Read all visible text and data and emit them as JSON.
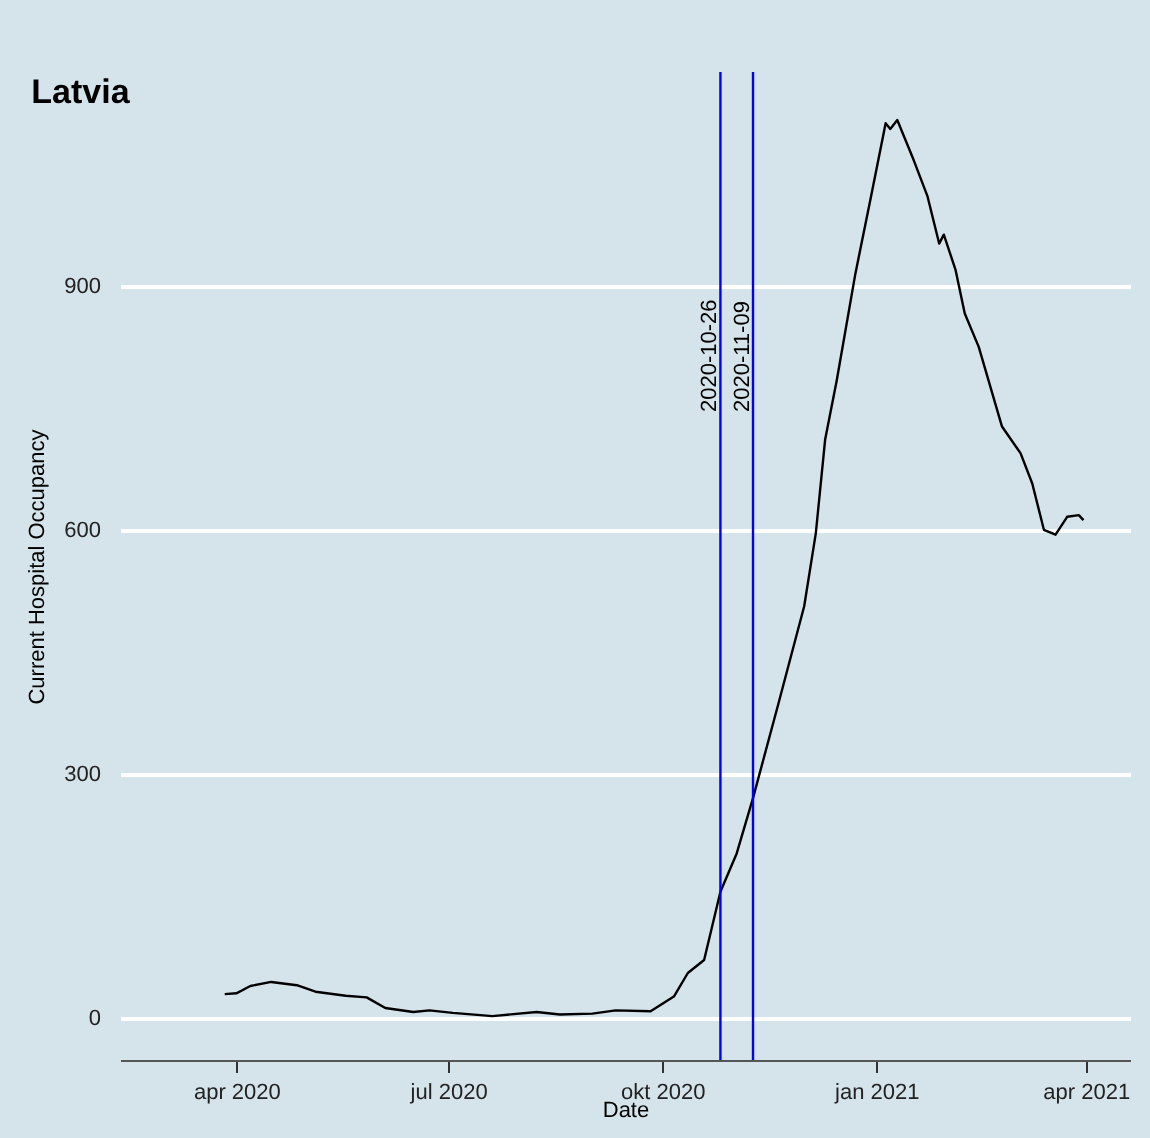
{
  "chart_data": {
    "type": "line",
    "title": "Latvia",
    "xlabel": "Date",
    "ylabel": "Current Hospital Occupancy",
    "x": [
      "2020-03-27",
      "2020-04-01",
      "2020-04-07",
      "2020-04-16",
      "2020-04-27",
      "2020-05-05",
      "2020-05-18",
      "2020-05-27",
      "2020-06-04",
      "2020-06-16",
      "2020-06-23",
      "2020-07-03",
      "2020-07-20",
      "2020-08-08",
      "2020-08-18",
      "2020-09-01",
      "2020-09-11",
      "2020-09-26",
      "2020-10-06",
      "2020-10-12",
      "2020-10-19",
      "2020-10-26",
      "2020-11-02",
      "2020-11-09",
      "2020-11-20",
      "2020-12-01",
      "2020-12-06",
      "2020-12-10",
      "2020-12-15",
      "2020-12-23",
      "2020-12-30",
      "2021-01-05",
      "2021-01-07",
      "2021-01-10",
      "2021-01-17",
      "2021-01-23",
      "2021-01-28",
      "2021-01-30",
      "2021-02-04",
      "2021-02-08",
      "2021-02-14",
      "2021-02-24",
      "2021-03-04",
      "2021-03-09",
      "2021-03-14",
      "2021-03-19",
      "2021-03-24",
      "2021-03-29",
      "2021-03-31"
    ],
    "series": [
      {
        "color": "#000000",
        "values": [
          29,
          30,
          39,
          44,
          40,
          32,
          27,
          25,
          12,
          7,
          9,
          6,
          2,
          7,
          4,
          5,
          9,
          8,
          26,
          55,
          71,
          155,
          202,
          270,
          387,
          506,
          596,
          711,
          784,
          915,
          1014,
          1100,
          1093,
          1104,
          1055,
          1010,
          952,
          963,
          920,
          866,
          825,
          727,
          694,
          657,
          600,
          594,
          616,
          618,
          612
        ]
      }
    ],
    "xlim": [
      "2020-02-11",
      "2021-04-20"
    ],
    "xticks": [
      {
        "value": "2020-04-01",
        "label": "apr 2020"
      },
      {
        "value": "2020-07-01",
        "label": "jul 2020"
      },
      {
        "value": "2020-10-01",
        "label": "okt 2020"
      },
      {
        "value": "2021-01-01",
        "label": "jan 2021"
      },
      {
        "value": "2021-04-01",
        "label": "apr 2021"
      }
    ],
    "ylim": [
      -52,
      1163
    ],
    "yticks": [
      0,
      300,
      600,
      900
    ],
    "grid": "y",
    "line_style": "solid",
    "marker": "none",
    "ref_lines": [
      {
        "axis": "x",
        "value": "2020-10-26",
        "label": "2020-10-26",
        "color": "#0000ff"
      },
      {
        "axis": "x",
        "value": "2020-11-09",
        "label": "2020-11-09",
        "color": "#0000ff"
      }
    ]
  }
}
